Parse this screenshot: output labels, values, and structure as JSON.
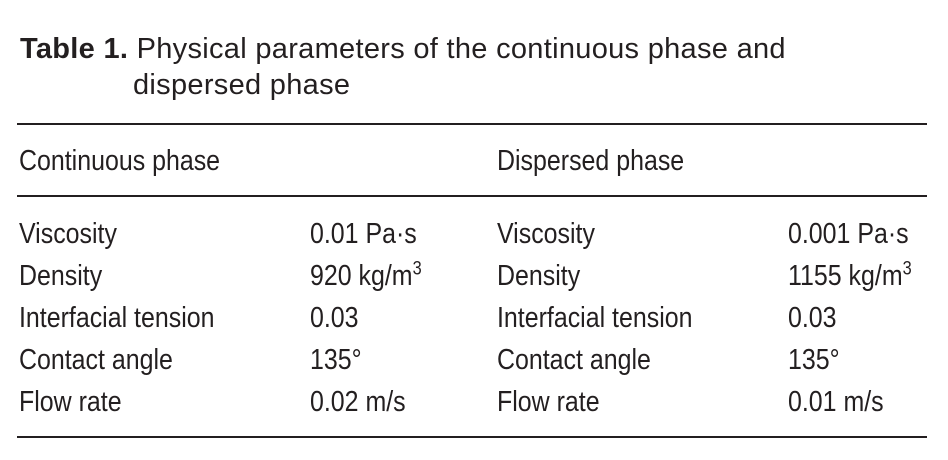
{
  "caption": {
    "label": "Table 1.",
    "text_line1": "Physical parameters of the continuous phase and",
    "text_line2": "dispersed phase"
  },
  "headers": {
    "continuous": "Continuous phase",
    "dispersed": "Dispersed phase"
  },
  "rows": [
    {
      "param_c": "Viscosity",
      "value_c": "0.01 Pa·s",
      "param_d": "Viscosity",
      "value_d": "0.001 Pa·s"
    },
    {
      "param_c": "Density",
      "value_c": "920 kg/m",
      "value_c_sup": "3",
      "param_d": "Density",
      "value_d": "1155 kg/m",
      "value_d_sup": "3"
    },
    {
      "param_c": "Interfacial tension",
      "value_c": "0.03",
      "param_d": "Interfacial tension",
      "value_d": "0.03"
    },
    {
      "param_c": "Contact angle",
      "value_c": "135°",
      "param_d": "Contact angle",
      "value_d": "135°"
    },
    {
      "param_c": "Flow rate",
      "value_c": "0.02 m/s",
      "param_d": "Flow rate",
      "value_d": "0.01 m/s"
    }
  ]
}
